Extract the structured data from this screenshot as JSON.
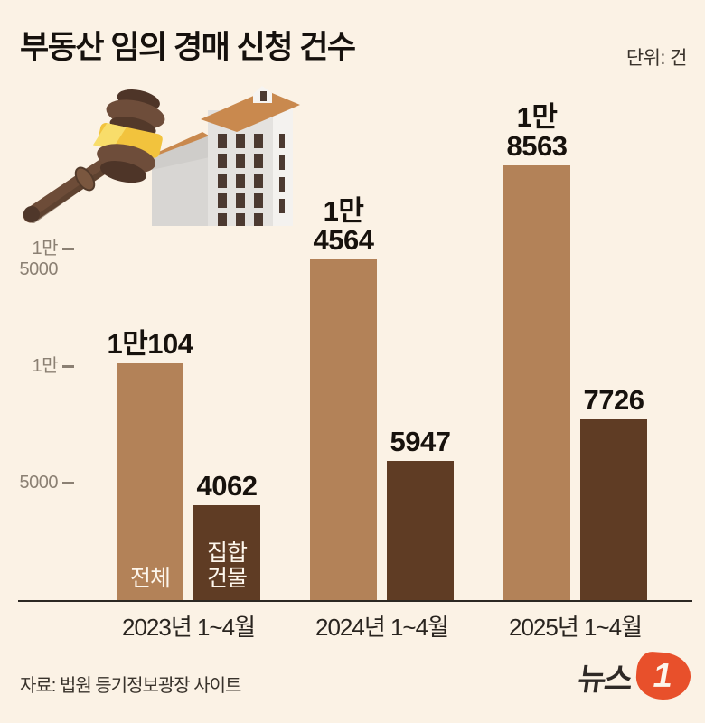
{
  "header": {
    "title": "부동산 임의 경매 신청 건수",
    "unit_label": "단위: 건"
  },
  "footer": {
    "source": "자료: 법원 등기정보광장 사이트",
    "logo_text": "뉴스",
    "logo_number": "1"
  },
  "icons": {
    "illustration": "gavel-and-buildings"
  },
  "colors": {
    "background": "#fbf2e5",
    "bar_total": "#b38258",
    "bar_collective": "#5f3c24",
    "axis_line": "#2c2823",
    "tick_text": "#8b8073",
    "logo_red": "#e8502b"
  },
  "chart_data": {
    "type": "bar",
    "title": "부동산 임의 경매 신청 건수",
    "unit": "건",
    "categories": [
      "2023년 1~4월",
      "2024년 1~4월",
      "2025년 1~4월"
    ],
    "series": [
      {
        "name": "전체",
        "in_bar_label": "전체",
        "color": "#b38258",
        "values": [
          10104,
          14564,
          18563
        ],
        "value_labels": [
          "1만104",
          "1만\n4564",
          "1만\n8563"
        ]
      },
      {
        "name": "집합건물",
        "in_bar_label": "집합\n건물",
        "color": "#5f3c24",
        "values": [
          4062,
          5947,
          7726
        ],
        "value_labels": [
          "4062",
          "5947",
          "7726"
        ]
      }
    ],
    "y_axis": {
      "ticks": [
        {
          "value": 15000,
          "label": "1만\n5000"
        },
        {
          "value": 10000,
          "label": "1만"
        },
        {
          "value": 5000,
          "label": "5000"
        }
      ],
      "ylim": [
        0,
        19000
      ]
    },
    "grid": false,
    "legend_position": "inside-first-group-bars"
  }
}
